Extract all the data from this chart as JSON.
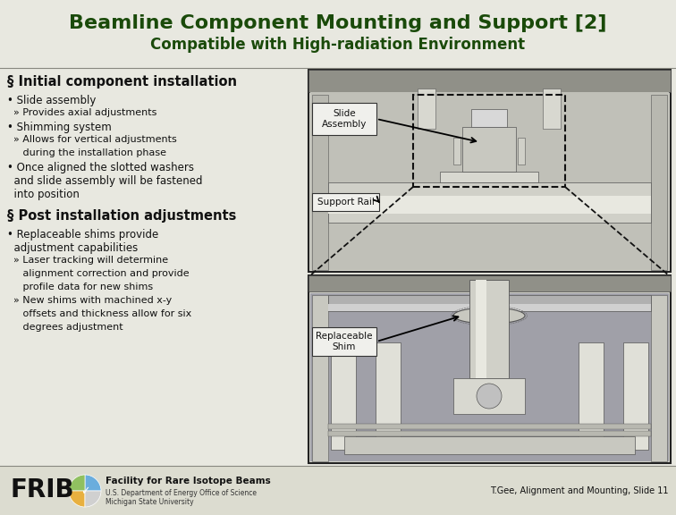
{
  "title": "Beamline Component Mounting and Support [2]",
  "subtitle": "Compatible with High-radiation Environment",
  "title_color": "#1a4a0a",
  "subtitle_color": "#1a4a0a",
  "bg_color": "#e8e8e0",
  "header_bg": "#e8e8e0",
  "content_bg": "#e8e8e0",
  "footer_bg": "#dcdcd0",
  "section1_header": "§ Initial component installation",
  "section2_header": "§ Post installation adjustments",
  "label1": "Slide\nAssembly",
  "label2": "Support Rail",
  "label3": "Replaceable\nShim",
  "footer_text1": "Facility for Rare Isotope Beams",
  "footer_text2": "U.S. Department of Energy Office of Science",
  "footer_text3": "Michigan State University",
  "footer_credit": "T.Gee, Alignment and Mounting, Slide 11",
  "frib_text": "FRIB",
  "diagram_bg": "#c8c8c0",
  "diagram_inner_bg": "#b0b0a8",
  "diagram_rail_color": "#d8d8d0",
  "diagram_dark": "#888888",
  "diagram_mid": "#b8b8b8",
  "diagram_light": "#e0e0e0",
  "label_box_color": "#f0f0ec"
}
